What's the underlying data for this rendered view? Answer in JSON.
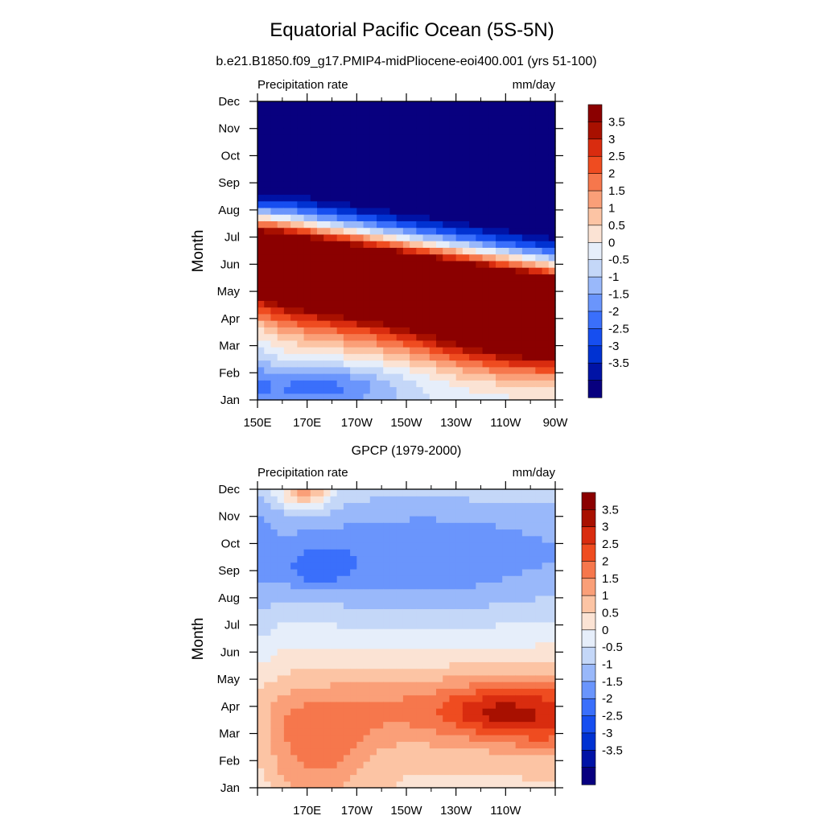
{
  "chart_data": [
    {
      "type": "heatmap",
      "main_title": "Equatorial Pacific Ocean (5S-5N)",
      "subtitle": "b.e21.B1850.f09_g17.PMIP4-midPliocene-eoi400.001 (yrs 51-100)",
      "left_label": "Precipitation rate",
      "right_label": "mm/day",
      "ylabel": "Month",
      "y_ticks": [
        "Jan",
        "Feb",
        "Mar",
        "Apr",
        "May",
        "Jun",
        "Jul",
        "Aug",
        "Sep",
        "Oct",
        "Nov",
        "Dec"
      ],
      "x_ticks": [
        "150E",
        "170E",
        "170W",
        "150W",
        "130W",
        "110W",
        "90W"
      ],
      "x_range": [
        150,
        270
      ],
      "colorbar_labels": [
        "3.5",
        "3",
        "2.5",
        "2",
        "1.5",
        "1",
        "0.5",
        "0",
        "-0.5",
        "-1",
        "-1.5",
        "-2",
        "-2.5",
        "-3",
        "-3.5"
      ],
      "pattern": "model"
    },
    {
      "type": "heatmap",
      "title": "GPCP (1979-2000)",
      "left_label": "Precipitation rate",
      "right_label": "mm/day",
      "ylabel": "Month",
      "y_ticks": [
        "Jan",
        "Feb",
        "Mar",
        "Apr",
        "May",
        "Jun",
        "Jul",
        "Aug",
        "Sep",
        "Oct",
        "Nov",
        "Dec"
      ],
      "x_ticks": [
        "170E",
        "170W",
        "150W",
        "130W",
        "110W"
      ],
      "x_range": [
        150,
        270
      ],
      "colorbar_labels": [
        "3.5",
        "3",
        "2.5",
        "2",
        "1.5",
        "1",
        "0.5",
        "0",
        "-0.5",
        "-1",
        "-1.5",
        "-2",
        "-2.5",
        "-3",
        "-3.5"
      ],
      "pattern": "obs"
    }
  ],
  "colors": {
    "scale": [
      "#08007f",
      "#0013a6",
      "#0032d2",
      "#164ef0",
      "#3a6ffb",
      "#6a95fc",
      "#99b8fa",
      "#c4d7f8",
      "#e6eefa",
      "#fbe3d4",
      "#fcc4a4",
      "#fa9f78",
      "#f6774c",
      "#ef4c20",
      "#d92c0f",
      "#a81000",
      "#8b0000"
    ]
  }
}
